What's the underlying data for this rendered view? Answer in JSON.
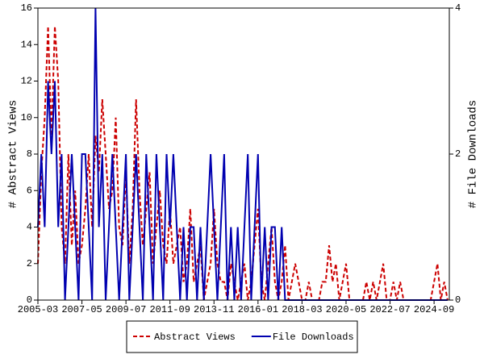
{
  "chart_data": {
    "type": "line",
    "x": [
      "2005-03",
      "2005-05",
      "2005-07",
      "2005-09",
      "2005-11",
      "2006-01",
      "2006-03",
      "2006-05",
      "2006-07",
      "2006-09",
      "2006-11",
      "2007-01",
      "2007-03",
      "2007-05",
      "2007-07",
      "2007-09",
      "2007-11",
      "2008-01",
      "2008-03",
      "2008-05",
      "2008-07",
      "2008-09",
      "2008-11",
      "2009-01",
      "2009-03",
      "2009-05",
      "2009-07",
      "2009-09",
      "2009-11",
      "2010-01",
      "2010-03",
      "2010-05",
      "2010-07",
      "2010-09",
      "2010-11",
      "2011-01",
      "2011-03",
      "2011-05",
      "2011-07",
      "2011-09",
      "2011-11",
      "2012-01",
      "2012-03",
      "2012-05",
      "2012-07",
      "2012-09",
      "2012-11",
      "2013-01",
      "2013-03",
      "2013-05",
      "2013-07",
      "2013-09",
      "2013-11",
      "2014-01",
      "2014-03",
      "2014-05",
      "2014-07",
      "2014-09",
      "2014-11",
      "2015-01",
      "2015-03",
      "2015-05",
      "2015-07",
      "2015-09",
      "2015-11",
      "2016-01",
      "2016-03",
      "2016-05",
      "2016-07",
      "2016-09",
      "2016-11",
      "2017-01",
      "2017-03",
      "2017-05",
      "2017-07",
      "2017-09",
      "2017-11",
      "2018-01",
      "2018-03",
      "2018-05",
      "2018-07",
      "2018-09",
      "2018-11",
      "2019-01",
      "2019-03",
      "2019-05",
      "2019-07",
      "2019-09",
      "2019-11",
      "2020-01",
      "2020-03",
      "2020-05",
      "2020-07",
      "2020-09",
      "2020-11",
      "2021-01",
      "2021-03",
      "2021-05",
      "2021-07",
      "2021-09",
      "2021-11",
      "2022-01",
      "2022-03",
      "2022-05",
      "2022-07",
      "2022-09",
      "2022-11",
      "2023-01",
      "2023-03",
      "2023-05",
      "2023-07",
      "2023-09",
      "2023-11",
      "2024-01",
      "2024-03",
      "2024-05",
      "2024-07",
      "2024-09",
      "2024-11",
      "2025-01",
      "2025-03",
      "2025-05"
    ],
    "series": [
      {
        "name": "Abstract Views",
        "color": "#cc0000",
        "dash": true,
        "axis": "y",
        "values": [
          2,
          7,
          10,
          15,
          9,
          15,
          12,
          4,
          2,
          8,
          3,
          6,
          2,
          3,
          5,
          8,
          4,
          9,
          7,
          11,
          8,
          5,
          6,
          10,
          4,
          3,
          7,
          2,
          5,
          11,
          6,
          3,
          5,
          7,
          2,
          4,
          6,
          3,
          2,
          5,
          2,
          3,
          4,
          1,
          2,
          5,
          1,
          2,
          3,
          0,
          1,
          2,
          5,
          2,
          1,
          1,
          0,
          2,
          1,
          0,
          1,
          2,
          0,
          1,
          3,
          5,
          1,
          0,
          2,
          4,
          1,
          0,
          1,
          3,
          0,
          1,
          2,
          1,
          0,
          0,
          1,
          0,
          0,
          0,
          1,
          1,
          3,
          1,
          2,
          0,
          1,
          2,
          0,
          0,
          0,
          0,
          0,
          1,
          0,
          1,
          0,
          1,
          2,
          0,
          0,
          1,
          0,
          1,
          0,
          0,
          0,
          0,
          0,
          0,
          0,
          0,
          0,
          1,
          2,
          0,
          1,
          0
        ]
      },
      {
        "name": "File Downloads",
        "color": "#0000b0",
        "dash": false,
        "axis": "y2",
        "values": [
          1,
          2,
          1,
          3,
          2,
          3,
          1,
          2,
          0,
          1,
          2,
          1,
          0,
          2,
          2,
          1,
          0,
          4,
          1,
          2,
          0,
          1,
          2,
          1,
          0,
          1,
          2,
          0,
          1,
          2,
          1,
          0,
          2,
          1,
          0,
          2,
          1,
          0,
          2,
          1,
          2,
          1,
          0,
          1,
          0,
          1,
          1,
          0,
          1,
          0,
          1,
          2,
          1,
          0,
          1,
          2,
          0,
          1,
          0,
          1,
          0,
          1,
          2,
          0,
          1,
          2,
          0,
          1,
          0,
          1,
          1,
          0,
          1,
          0,
          0,
          0,
          0,
          0,
          0,
          0,
          0,
          0,
          0,
          0,
          0,
          0,
          0,
          0,
          0,
          0,
          0,
          0,
          0,
          0,
          0,
          0,
          0,
          0,
          0,
          0,
          0,
          0,
          0,
          0,
          0,
          0,
          0,
          0,
          0,
          0,
          0,
          0,
          0,
          0,
          0,
          0,
          0,
          0,
          0,
          0,
          0,
          0
        ]
      }
    ],
    "xlim": [
      "2005-03",
      "2025-06"
    ],
    "xticks": [
      "2005-03",
      "2007-05",
      "2009-07",
      "2011-09",
      "2013-11",
      "2016-01",
      "2018-03",
      "2020-05",
      "2022-07",
      "2024-09"
    ],
    "ylabel": "# Abstract Views",
    "ylim": [
      0,
      16
    ],
    "yticks": [
      0,
      2,
      4,
      6,
      8,
      10,
      12,
      14,
      16
    ],
    "y2label": "# File Downloads",
    "y2lim": [
      0,
      4
    ],
    "y2ticks": [
      0,
      2,
      4
    ],
    "legend": "bottom"
  }
}
